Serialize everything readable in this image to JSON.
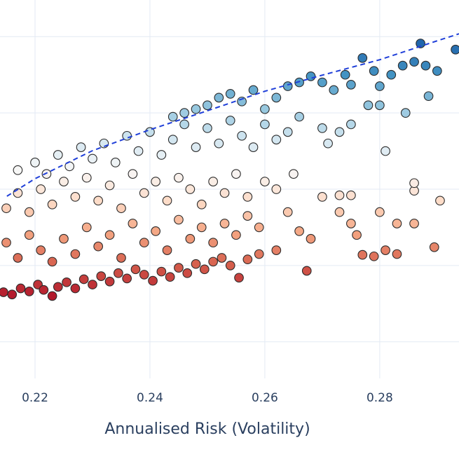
{
  "chart_data": {
    "type": "scatter",
    "x_label": "Annualised Risk (Volatility)",
    "xlim": [
      0.2139,
      0.2938
    ],
    "ylim": [
      0.52,
      5.48
    ],
    "xticks": [
      0.22,
      0.24,
      0.26,
      0.28
    ],
    "yticks": [
      1,
      2,
      3,
      4,
      5
    ],
    "grid": true,
    "colorscale": [
      "#b2182b",
      "#d6604d",
      "#f4a582",
      "#fddbc7",
      "#f7f7f7",
      "#d1e5f0",
      "#92c5de",
      "#4393c3",
      "#2166ac"
    ],
    "series": [
      {
        "type": "scatter",
        "x": [
          0.2145,
          0.216,
          0.2175,
          0.219,
          0.2205,
          0.2215,
          0.223,
          0.224,
          0.2255,
          0.227,
          0.2285,
          0.23,
          0.2315,
          0.233,
          0.2345,
          0.236,
          0.2375,
          0.239,
          0.2405,
          0.242,
          0.2435,
          0.245,
          0.2465,
          0.248,
          0.2495,
          0.251,
          0.2525,
          0.254,
          0.2555,
          0.257,
          0.259,
          0.262,
          0.2673,
          0.277,
          0.279,
          0.281,
          0.283,
          0.2895,
          0.215,
          0.217,
          0.219,
          0.221,
          0.223,
          0.225,
          0.227,
          0.229,
          0.231,
          0.233,
          0.235,
          0.237,
          0.239,
          0.241,
          0.243,
          0.245,
          0.247,
          0.249,
          0.251,
          0.253,
          0.255,
          0.257,
          0.259,
          0.264,
          0.266,
          0.268,
          0.273,
          0.275,
          0.276,
          0.28,
          0.283,
          0.286,
          0.2905,
          0.215,
          0.217,
          0.219,
          0.221,
          0.223,
          0.225,
          0.227,
          0.229,
          0.231,
          0.233,
          0.235,
          0.237,
          0.239,
          0.241,
          0.243,
          0.245,
          0.247,
          0.249,
          0.251,
          0.253,
          0.255,
          0.257,
          0.26,
          0.262,
          0.265,
          0.27,
          0.273,
          0.275,
          0.286,
          0.286,
          0.281,
          0.217,
          0.22,
          0.222,
          0.224,
          0.226,
          0.228,
          0.23,
          0.232,
          0.234,
          0.236,
          0.238,
          0.24,
          0.242,
          0.244,
          0.246,
          0.248,
          0.25,
          0.252,
          0.254,
          0.256,
          0.258,
          0.26,
          0.262,
          0.264,
          0.266,
          0.27,
          0.271,
          0.273,
          0.275,
          0.278,
          0.28,
          0.2845,
          0.244,
          0.246,
          0.248,
          0.25,
          0.252,
          0.254,
          0.256,
          0.258,
          0.26,
          0.262,
          0.264,
          0.266,
          0.268,
          0.27,
          0.272,
          0.274,
          0.275,
          0.277,
          0.279,
          0.28,
          0.282,
          0.284,
          0.286,
          0.288,
          0.29,
          0.2885,
          0.2871,
          0.2932
        ],
        "values": [
          1.65,
          1.62,
          1.7,
          1.66,
          1.75,
          1.68,
          1.6,
          1.72,
          1.78,
          1.7,
          1.82,
          1.75,
          1.86,
          1.79,
          1.9,
          1.83,
          1.95,
          1.88,
          1.8,
          1.92,
          1.85,
          1.97,
          1.9,
          2.02,
          1.95,
          2.05,
          2.1,
          2.0,
          1.84,
          2.08,
          2.15,
          2.2,
          1.93,
          2.14,
          2.12,
          2.2,
          2.15,
          2.24,
          2.3,
          2.1,
          2.4,
          2.2,
          2.05,
          2.35,
          2.15,
          2.5,
          2.25,
          2.4,
          2.1,
          2.55,
          2.3,
          2.45,
          2.2,
          2.6,
          2.35,
          2.5,
          2.3,
          2.55,
          2.4,
          2.65,
          2.5,
          2.7,
          2.45,
          2.35,
          2.7,
          2.55,
          2.4,
          2.7,
          2.55,
          2.55,
          2.85,
          2.75,
          2.95,
          2.7,
          3.0,
          2.8,
          3.1,
          2.9,
          3.15,
          2.85,
          3.05,
          2.75,
          3.2,
          2.95,
          3.1,
          2.85,
          3.15,
          3.0,
          2.8,
          3.1,
          2.95,
          3.2,
          2.9,
          3.1,
          3.0,
          3.2,
          2.9,
          2.92,
          2.92,
          2.98,
          3.08,
          3.5,
          3.25,
          3.35,
          3.2,
          3.45,
          3.3,
          3.55,
          3.4,
          3.6,
          3.35,
          3.7,
          3.5,
          3.75,
          3.45,
          3.65,
          3.85,
          3.55,
          3.8,
          3.6,
          3.9,
          3.7,
          3.55,
          3.85,
          3.65,
          3.75,
          3.95,
          3.8,
          3.6,
          3.75,
          3.85,
          4.1,
          4.1,
          4.0,
          3.95,
          4.0,
          4.05,
          4.1,
          4.2,
          4.25,
          4.15,
          4.3,
          4.05,
          4.2,
          4.35,
          4.4,
          4.48,
          4.4,
          4.3,
          4.5,
          4.37,
          4.72,
          4.55,
          4.35,
          4.5,
          4.62,
          4.67,
          4.62,
          4.55,
          4.22,
          4.91,
          4.83
        ]
      },
      {
        "type": "line",
        "color": "#1f3fd9",
        "dash": true,
        "x": [
          0.2151,
          0.22,
          0.23,
          0.24,
          0.25,
          0.26,
          0.27,
          0.28,
          0.29,
          0.2938
        ],
        "values": [
          2.908,
          3.138,
          3.505,
          3.78,
          4.028,
          4.284,
          4.495,
          4.697,
          4.945,
          5.037
        ]
      }
    ]
  }
}
